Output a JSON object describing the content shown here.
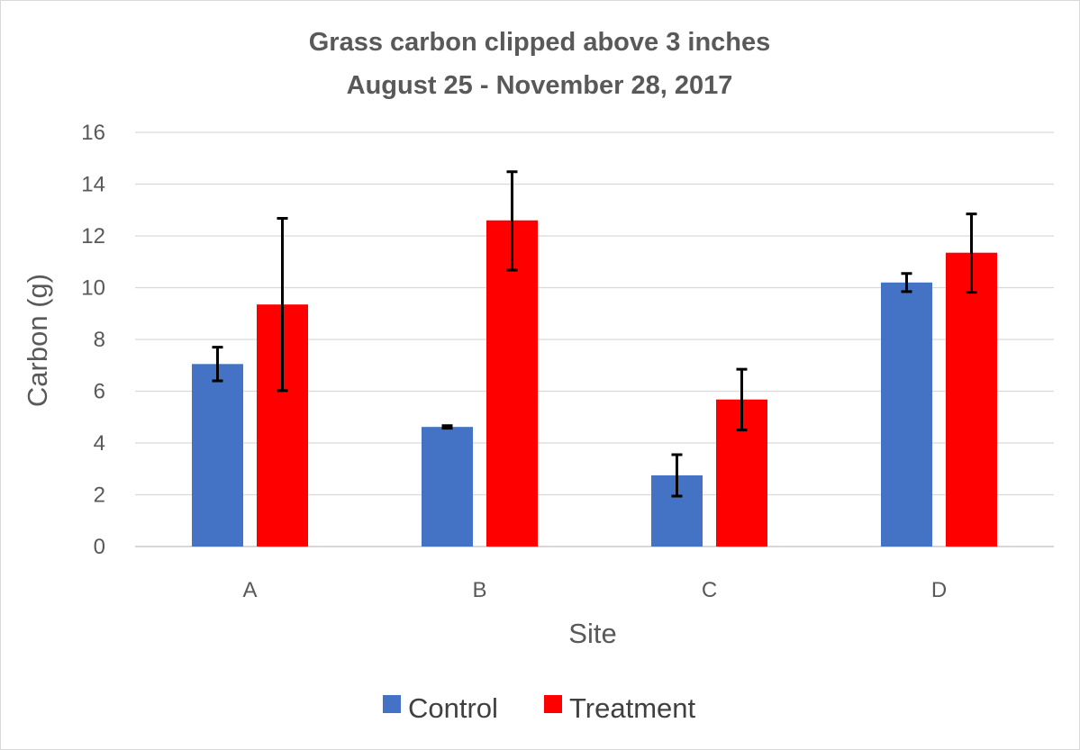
{
  "chart_data": {
    "type": "bar",
    "title": [
      "Grass carbon clipped above 3 inches",
      "August 25 - November 28, 2017"
    ],
    "xlabel": "Site",
    "ylabel": "Carbon (g)",
    "categories": [
      "A",
      "B",
      "C",
      "D"
    ],
    "ylim": [
      0,
      16
    ],
    "yticks": [
      0,
      2,
      4,
      6,
      8,
      10,
      12,
      14,
      16
    ],
    "grid": true,
    "legend_position": "bottom",
    "series": [
      {
        "name": "Control",
        "color": "#4472c4",
        "values": [
          7.05,
          4.62,
          2.75,
          10.2
        ],
        "error_low": [
          6.4,
          4.57,
          1.95,
          9.85
        ],
        "error_high": [
          7.7,
          4.67,
          3.55,
          10.55
        ]
      },
      {
        "name": "Treatment",
        "color": "#ff0000",
        "values": [
          9.35,
          12.6,
          5.68,
          11.35
        ],
        "error_low": [
          6.02,
          10.68,
          4.5,
          9.82
        ],
        "error_high": [
          12.68,
          14.48,
          6.85,
          12.85
        ]
      }
    ]
  }
}
